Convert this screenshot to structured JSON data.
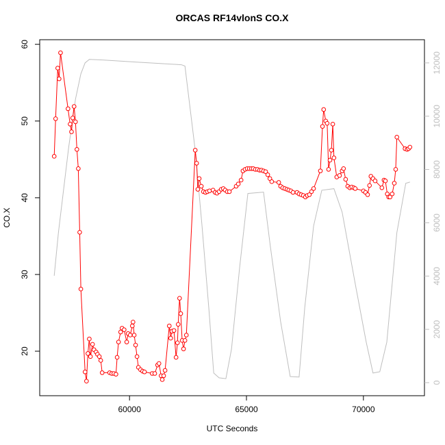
{
  "chart_data": {
    "type": "line",
    "title": "ORCAS RF14vlonS CO.X",
    "x_label": "UTC Seconds",
    "y_label": "CO.X",
    "xlim": [
      56160,
      72610
    ],
    "xticks": [
      60000,
      65000,
      70000
    ],
    "ylim": [
      14.2,
      60.6
    ],
    "yticks": [
      20,
      30,
      40,
      50,
      60
    ],
    "y2lim": [
      -490,
      12870
    ],
    "y2ticks": [
      0,
      2000,
      4000,
      6000,
      8000,
      10000,
      12000
    ],
    "series": [
      {
        "color": "#ff0000",
        "markers": true,
        "x": [
          56780,
          56840,
          56930,
          56990,
          57050,
          57370,
          57460,
          57520,
          57570,
          57630,
          57690,
          57750,
          57810,
          57870,
          57920,
          58100,
          58160,
          58220,
          58280,
          58330,
          58420,
          58480,
          58570,
          58630,
          58710,
          58770,
          58830,
          59150,
          59240,
          59330,
          59420,
          59470,
          59530,
          59620,
          59680,
          59770,
          59880,
          59940,
          60030,
          60120,
          60150,
          60200,
          60260,
          60320,
          60380,
          60470,
          60560,
          60640,
          60970,
          61080,
          61200,
          61260,
          61350,
          61400,
          61460,
          61520,
          61700,
          61760,
          61810,
          61900,
          61990,
          62050,
          62080,
          62140,
          62190,
          62250,
          62310,
          62370,
          62430,
          62810,
          62870,
          62920,
          62980,
          63070,
          63160,
          63250,
          63330,
          63420,
          63570,
          63660,
          63740,
          63830,
          63920,
          64010,
          64090,
          64180,
          64270,
          64560,
          64650,
          64770,
          64850,
          64940,
          65030,
          65120,
          65210,
          65290,
          65380,
          65470,
          65560,
          65640,
          65730,
          65820,
          65910,
          66000,
          66080,
          66380,
          66460,
          66550,
          66640,
          66730,
          66810,
          66900,
          66990,
          67160,
          67250,
          67340,
          67430,
          67520,
          67600,
          67690,
          67780,
          67870,
          68160,
          68250,
          68300,
          68390,
          68450,
          68510,
          68570,
          68630,
          68690,
          68740,
          68860,
          68980,
          69090,
          69150,
          69240,
          69330,
          69420,
          69500,
          69590,
          69650,
          70000,
          70090,
          70180,
          70260,
          70320,
          70410,
          70500,
          70790,
          70880,
          70940,
          71020,
          71080,
          71140,
          71230,
          71320,
          71380,
          71430,
          71780,
          71870,
          71930,
          71990
        ],
        "values": [
          45.4,
          50.3,
          56.9,
          55.5,
          58.9,
          51.6,
          49.6,
          48.6,
          50.4,
          51.9,
          49.9,
          46.3,
          43.8,
          35.5,
          28.1,
          17.3,
          16.1,
          19.7,
          21.6,
          19.3,
          20.9,
          20.2,
          19.9,
          19.6,
          19.3,
          18.8,
          17.2,
          17.2,
          17.1,
          17.1,
          17.0,
          19.2,
          21.2,
          22.5,
          23.0,
          22.8,
          21.2,
          22.3,
          22.1,
          23.3,
          23.8,
          22.1,
          20.8,
          19.3,
          17.9,
          17.6,
          17.4,
          17.3,
          17.1,
          17.1,
          18.2,
          18.4,
          16.8,
          16.3,
          16.8,
          17.5,
          23.3,
          21.7,
          22.6,
          22.7,
          19.2,
          21.1,
          23.5,
          26.9,
          24.9,
          21.4,
          20.3,
          21.4,
          22.1,
          46.2,
          44.5,
          41.1,
          42.5,
          41.5,
          40.8,
          40.7,
          40.8,
          40.9,
          41.0,
          40.7,
          40.6,
          40.8,
          41.1,
          41.2,
          41.0,
          40.8,
          40.8,
          41.5,
          41.8,
          42.3,
          43.5,
          43.7,
          43.8,
          43.8,
          43.8,
          43.8,
          43.7,
          43.7,
          43.6,
          43.6,
          43.5,
          43.4,
          43.0,
          42.5,
          42.1,
          42.0,
          41.5,
          41.3,
          41.2,
          41.1,
          41.0,
          40.9,
          40.7,
          40.7,
          40.5,
          40.4,
          40.3,
          40.1,
          40.3,
          40.4,
          40.8,
          41.2,
          43.5,
          49.3,
          51.5,
          50.0,
          49.7,
          43.7,
          44.9,
          46.2,
          49.6,
          45.2,
          42.7,
          42.9,
          43.5,
          43.8,
          42.4,
          41.5,
          41.3,
          41.4,
          41.3,
          41.2,
          40.9,
          40.7,
          40.4,
          41.6,
          42.8,
          42.5,
          42.2,
          41.3,
          42.3,
          42.2,
          40.5,
          40.1,
          40.1,
          40.5,
          41.9,
          43.7,
          47.9,
          46.4,
          46.3,
          46.4,
          46.6
        ]
      },
      {
        "color": "#bebebe",
        "markers": false,
        "axis": "y2",
        "x": [
          56780,
          56960,
          57400,
          57690,
          57920,
          58100,
          58280,
          58860,
          60320,
          62220,
          62370,
          62810,
          63100,
          63390,
          63600,
          63830,
          64120,
          64360,
          64710,
          65060,
          65730,
          66020,
          66460,
          66870,
          67250,
          67490,
          67870,
          68220,
          68740,
          69090,
          69680,
          70120,
          70410,
          70700,
          71000,
          71430,
          71810,
          71990
        ],
        "values": [
          4010,
          5630,
          8840,
          10640,
          11590,
          12000,
          12130,
          12110,
          12030,
          11930,
          11880,
          8710,
          5880,
          2800,
          360,
          180,
          150,
          1260,
          4340,
          7100,
          7150,
          5120,
          2290,
          230,
          210,
          2800,
          5880,
          7220,
          7280,
          6400,
          3570,
          1520,
          360,
          410,
          1520,
          5630,
          7480,
          7530
        ]
      }
    ]
  }
}
